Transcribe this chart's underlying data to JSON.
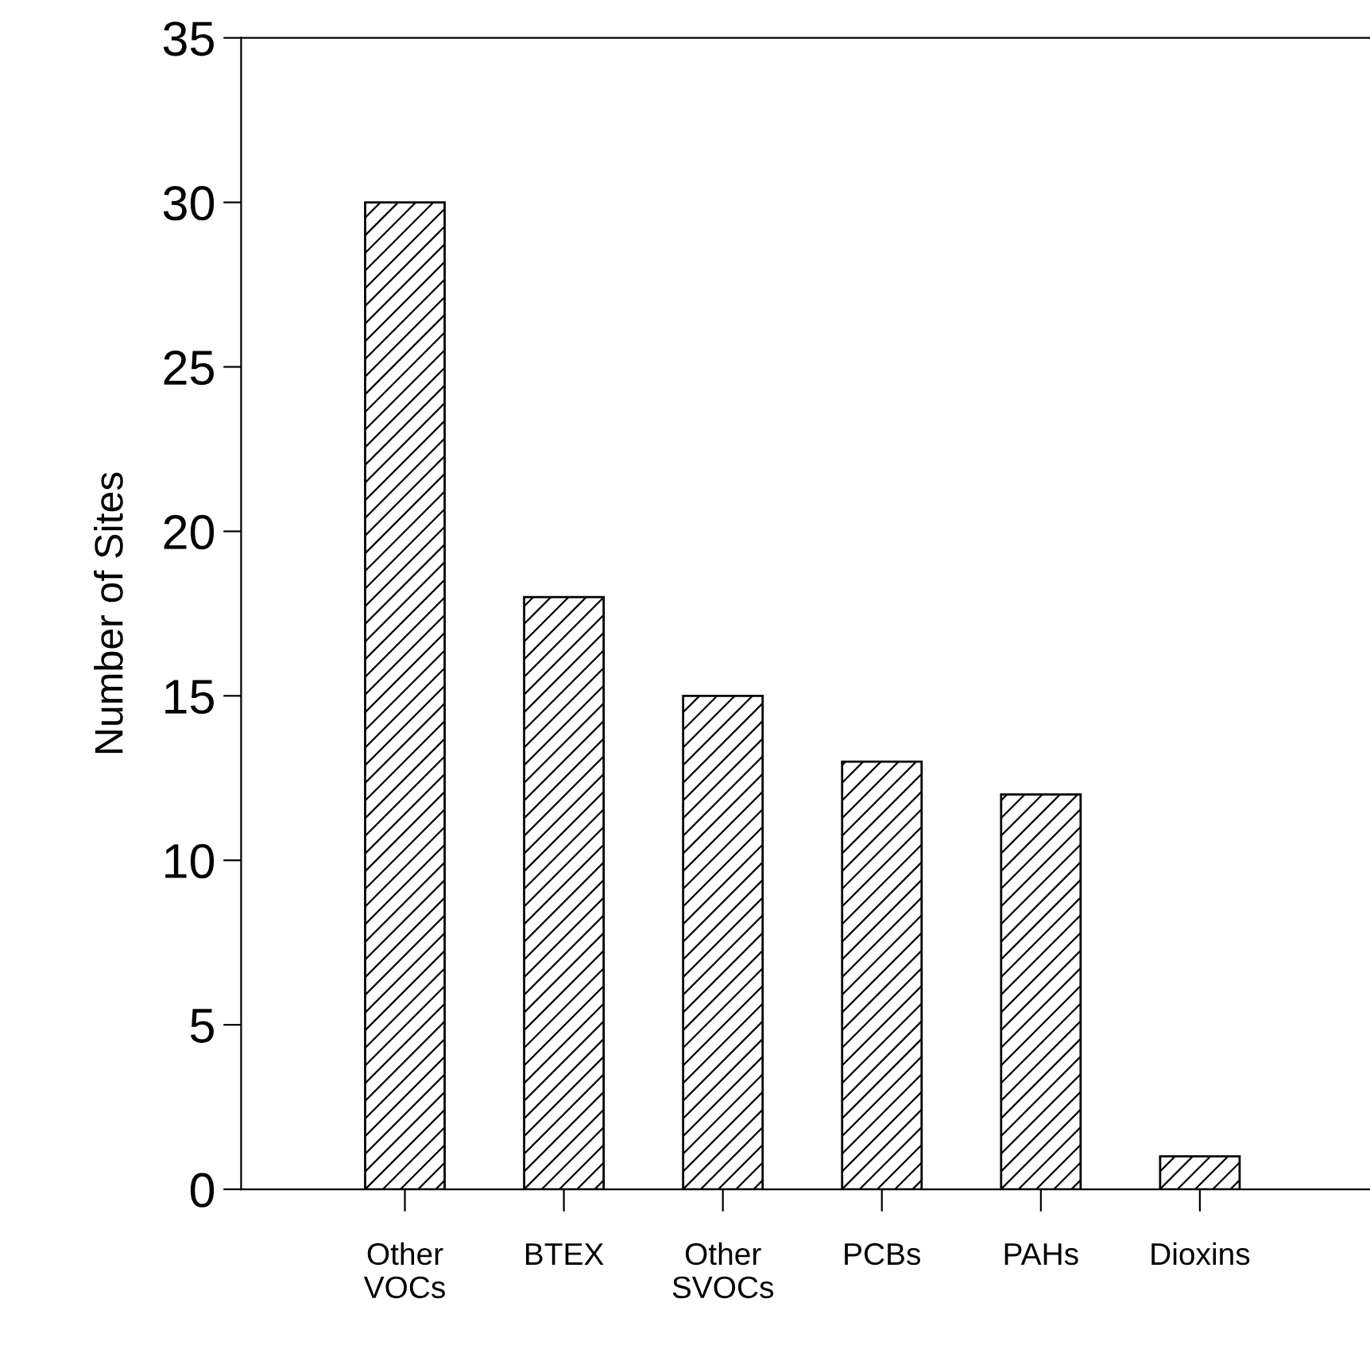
{
  "chart_data": {
    "type": "bar",
    "ylabel": "Number of Sites",
    "categories": [
      "Other\nVOCs",
      "BTEX",
      "Other\nSVOCs",
      "PCBs",
      "PAHs",
      "Dioxins"
    ],
    "values": [
      30,
      18,
      15,
      13,
      12,
      1
    ],
    "color": "#000000",
    "ylim": [
      0,
      35
    ],
    "yticks": [
      0,
      5,
      10,
      15,
      20,
      25,
      30,
      35
    ],
    "grid": false
  }
}
